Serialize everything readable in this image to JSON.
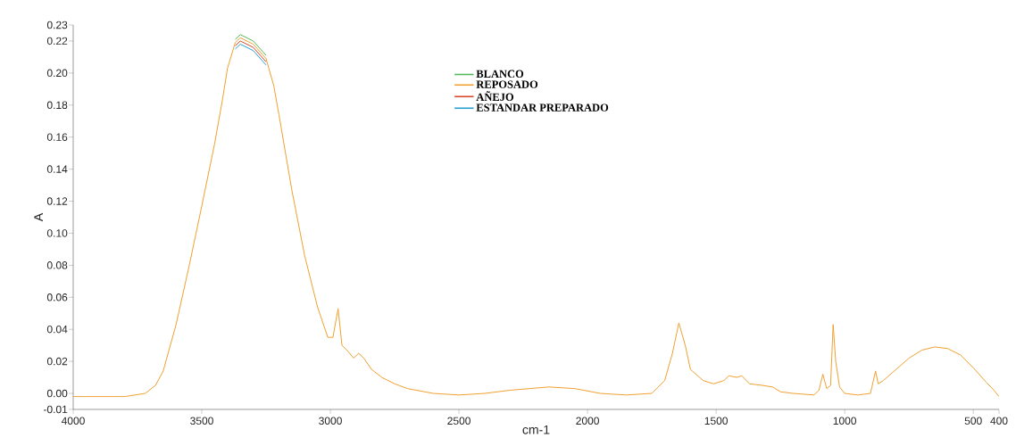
{
  "chart_data": {
    "type": "line",
    "xlabel": "cm-1",
    "ylabel": "A",
    "x": [
      4000,
      3800,
      3720,
      3680,
      3650,
      3600,
      3550,
      3500,
      3450,
      3420,
      3400,
      3370,
      3350,
      3300,
      3250,
      3220,
      3200,
      3150,
      3100,
      3050,
      3010,
      2990,
      2970,
      2955,
      2930,
      2910,
      2890,
      2870,
      2840,
      2800,
      2750,
      2700,
      2600,
      2500,
      2400,
      2300,
      2150,
      2050,
      1950,
      1850,
      1750,
      1700,
      1670,
      1645,
      1620,
      1600,
      1550,
      1510,
      1470,
      1450,
      1420,
      1400,
      1370,
      1320,
      1280,
      1250,
      1200,
      1120,
      1100,
      1085,
      1070,
      1055,
      1045,
      1035,
      1020,
      1000,
      950,
      900,
      880,
      870,
      850,
      800,
      750,
      700,
      650,
      600,
      550,
      500,
      450,
      420,
      400
    ],
    "series": [
      {
        "name": "BLANCO",
        "color": "#55b85a",
        "x": [
          3370,
          3350,
          3300,
          3250
        ],
        "values": [
          0.221,
          0.224,
          0.22,
          0.211
        ]
      },
      {
        "name": "REPOSADO",
        "color": "#f0a030",
        "values": [
          -0.002,
          -0.002,
          0.0,
          0.005,
          0.014,
          0.043,
          0.079,
          0.117,
          0.156,
          0.183,
          0.203,
          0.219,
          0.222,
          0.218,
          0.209,
          0.192,
          0.174,
          0.127,
          0.086,
          0.054,
          0.035,
          0.035,
          0.053,
          0.03,
          0.026,
          0.022,
          0.025,
          0.022,
          0.015,
          0.01,
          0.006,
          0.003,
          0.0,
          -0.001,
          0.0,
          0.002,
          0.004,
          0.003,
          0.0,
          -0.001,
          0.0,
          0.008,
          0.025,
          0.044,
          0.03,
          0.015,
          0.008,
          0.006,
          0.008,
          0.011,
          0.01,
          0.011,
          0.006,
          0.005,
          0.004,
          0.001,
          0.0,
          -0.001,
          0.002,
          0.012,
          0.003,
          0.005,
          0.043,
          0.02,
          0.004,
          0.0,
          -0.001,
          0.0,
          0.014,
          0.006,
          0.008,
          0.015,
          0.022,
          0.027,
          0.029,
          0.028,
          0.024,
          0.016,
          0.007,
          0.002,
          -0.002
        ]
      },
      {
        "name": "AÑEJO",
        "color": "#d9482b",
        "x": [
          3370,
          3350,
          3300,
          3250
        ],
        "values": [
          0.217,
          0.22,
          0.216,
          0.207
        ]
      },
      {
        "name": "ESTANDAR PREPARADO",
        "color": "#2aa0d0",
        "x": [
          3370,
          3350,
          3300,
          3250
        ],
        "values": [
          0.215,
          0.218,
          0.214,
          0.205
        ]
      }
    ],
    "xlim": [
      4000,
      400
    ],
    "ylim": [
      -0.01,
      0.23
    ],
    "xticks": [
      4000,
      3500,
      3000,
      2500,
      2000,
      1500,
      1000,
      500,
      400
    ],
    "yticks": [
      {
        "value": -0.01,
        "label": "-0.01"
      },
      {
        "value": 0,
        "label": "0.00"
      },
      {
        "value": 0.02,
        "label": "0.02"
      },
      {
        "value": 0.04,
        "label": "0.04"
      },
      {
        "value": 0.06,
        "label": "0.06"
      },
      {
        "value": 0.08,
        "label": "0.08"
      },
      {
        "value": 0.1,
        "label": "0.10"
      },
      {
        "value": 0.12,
        "label": "0.12"
      },
      {
        "value": 0.14,
        "label": "0.14"
      },
      {
        "value": 0.16,
        "label": "0.16"
      },
      {
        "value": 0.18,
        "label": "0.18"
      },
      {
        "value": 0.2,
        "label": "0.20"
      },
      {
        "value": 0.22,
        "label": "0.22"
      },
      {
        "value": 0.23,
        "label": "0.23"
      }
    ],
    "legend": "top"
  }
}
